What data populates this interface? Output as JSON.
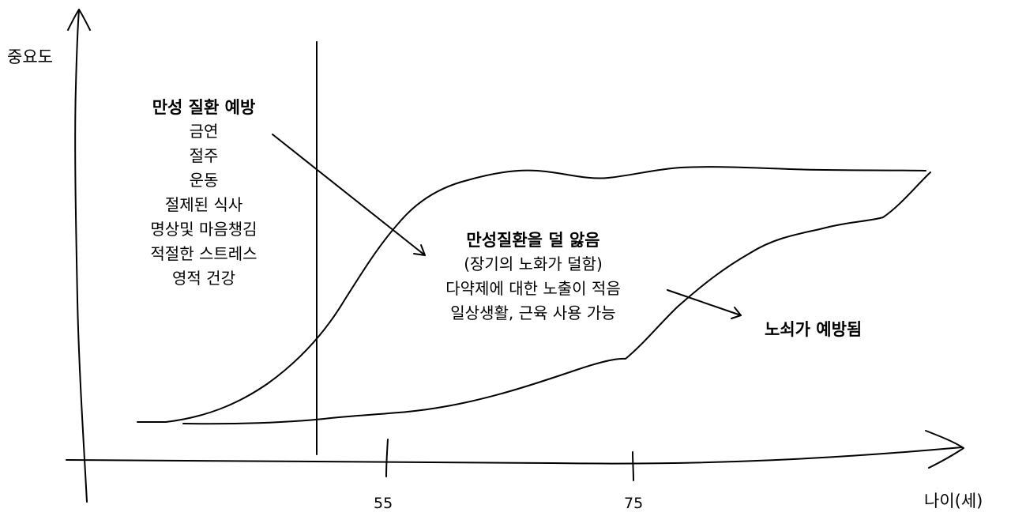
{
  "axes": {
    "y_label": "중요도",
    "x_label": "나이(세)",
    "ticks": [
      "55",
      "75"
    ]
  },
  "prevention": {
    "title": "만성 질환 예방",
    "items": [
      "금연",
      "절주",
      "운동",
      "절제된 식사",
      "명상및 마음챙김",
      "적절한 스트레스",
      "영적 건강"
    ]
  },
  "outcome": {
    "title": "만성질환을 덜 앓음",
    "items": [
      "(장기의 노화가 덜함)",
      "다약제에 대한 노출이 적음",
      "일상생활, 근육 사용 가능"
    ]
  },
  "result": {
    "label": "노쇠가 예방됨"
  }
}
